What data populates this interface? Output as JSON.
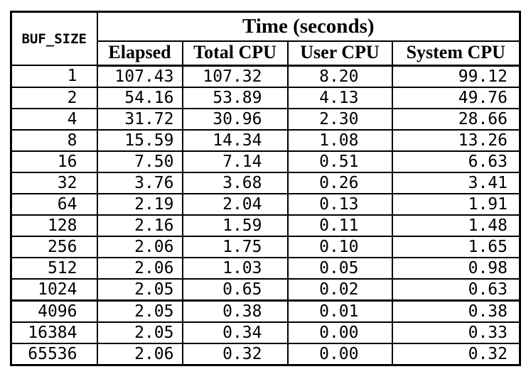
{
  "colors": {
    "border": "#000000",
    "background": "#ffffff",
    "text": "#000000"
  },
  "table": {
    "corner_header": "BUF_SIZE",
    "group_header": "Time (seconds)",
    "sub_headers": [
      "Elapsed",
      "Total CPU",
      "User CPU",
      "System CPU"
    ],
    "groups": [
      {
        "rows": [
          [
            "1",
            "107.43",
            "107.32",
            "8.20",
            "99.12"
          ],
          [
            "2",
            "54.16",
            "53.89",
            "4.13",
            "49.76"
          ],
          [
            "4",
            "31.72",
            "30.96",
            "2.30",
            "28.66"
          ],
          [
            "8",
            "15.59",
            "14.34",
            "1.08",
            "13.26"
          ],
          [
            "16",
            "7.50",
            "7.14",
            "0.51",
            "6.63"
          ],
          [
            "32",
            "3.76",
            "3.68",
            "0.26",
            "3.41"
          ],
          [
            "64",
            "2.19",
            "2.04",
            "0.13",
            "1.91"
          ],
          [
            "128",
            "2.16",
            "1.59",
            "0.11",
            "1.48"
          ],
          [
            "256",
            "2.06",
            "1.75",
            "0.10",
            "1.65"
          ],
          [
            "512",
            "2.06",
            "1.03",
            "0.05",
            "0.98"
          ],
          [
            "1024",
            "2.05",
            "0.65",
            "0.02",
            "0.63"
          ]
        ]
      },
      {
        "rows": [
          [
            "4096",
            "2.05",
            "0.38",
            "0.01",
            "0.38"
          ],
          [
            "16384",
            "2.05",
            "0.34",
            "0.00",
            "0.33"
          ],
          [
            "65536",
            "2.06",
            "0.32",
            "0.00",
            "0.32"
          ]
        ]
      }
    ]
  }
}
